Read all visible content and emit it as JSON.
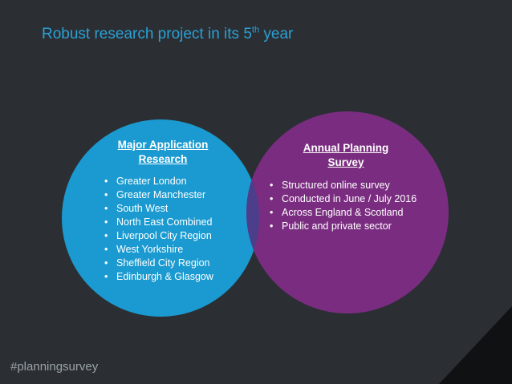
{
  "slide": {
    "title_main": "Robust research project in its 5",
    "title_sup": "th",
    "title_end": " year",
    "hashtag": "#planningsurvey"
  },
  "colors": {
    "background": "#2b2f33",
    "title": "#2aa0d6",
    "left_circle": "#1a9ad0",
    "right_circle": "#7a2d80",
    "overlap": "#4c3e8a",
    "corner": "#0f1113"
  },
  "left_circle": {
    "heading": [
      "Major Application",
      "Research"
    ],
    "items": [
      "Greater London",
      "Greater Manchester",
      "South West",
      "North East Combined",
      "Liverpool City Region",
      "West Yorkshire",
      "Sheffield City Region",
      "Edinburgh & Glasgow"
    ]
  },
  "right_circle": {
    "heading": [
      "Annual Planning",
      "Survey"
    ],
    "items": [
      "Structured online survey",
      "Conducted in June / July 2016",
      "Across England & Scotland",
      "Public and private sector"
    ]
  }
}
